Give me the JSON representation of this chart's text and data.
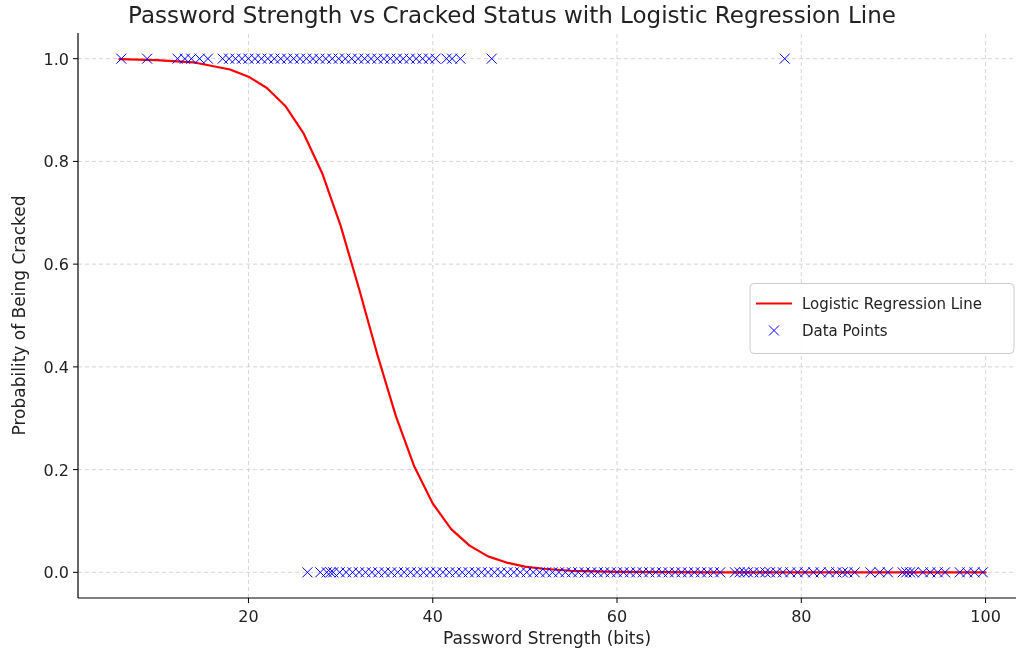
{
  "chart_data": {
    "type": "scatter",
    "title": "Password Strength vs Cracked Status with Logistic Regression Line",
    "xlabel": "Password Strength (bits)",
    "ylabel": "Probability of Being Cracked",
    "xlim": [
      1.5,
      103.3
    ],
    "ylim": [
      -0.05,
      1.05
    ],
    "xticks": [
      20,
      40,
      60,
      80,
      100
    ],
    "yticks": [
      {
        "value": 0,
        "label": "0.0"
      },
      {
        "value": 0.2,
        "label": "0.2"
      },
      {
        "value": 0.4,
        "label": "0.4"
      },
      {
        "value": 0.6,
        "label": "0.6"
      },
      {
        "value": 0.8,
        "label": "0.8"
      },
      {
        "value": 1,
        "label": "1.0"
      }
    ],
    "grid": true,
    "legend": "right",
    "series": [
      {
        "name": "Logistic Regression Line",
        "type": "line",
        "color": "#ff0000",
        "line_style": "solid",
        "marker": "none",
        "x": [
          6,
          10,
          14,
          18,
          20,
          22,
          24,
          26,
          28,
          30,
          32,
          34,
          36,
          38,
          40,
          42,
          44,
          46,
          48,
          50,
          52,
          55,
          60,
          70,
          80,
          90,
          100
        ],
        "values": [
          0.999,
          0.997,
          0.993,
          0.979,
          0.965,
          0.943,
          0.908,
          0.854,
          0.777,
          0.675,
          0.552,
          0.423,
          0.304,
          0.206,
          0.134,
          0.084,
          0.052,
          0.031,
          0.019,
          0.011,
          0.007,
          0.003,
          0.001,
          0,
          0,
          0,
          0
        ]
      },
      {
        "name": "Data Points",
        "color": "#0000ff",
        "marker": "cross",
        "x": [
          6.2,
          9.0,
          12.3,
          13.1,
          13.8,
          14.7,
          15.6,
          17.2,
          17.9,
          18.6,
          19.3,
          20.0,
          20.7,
          21.4,
          22.1,
          22.8,
          23.5,
          24.2,
          24.9,
          25.6,
          26.3,
          27.0,
          27.7,
          28.4,
          29.1,
          29.8,
          30.5,
          31.2,
          31.9,
          32.6,
          33.3,
          34.0,
          34.7,
          35.4,
          36.1,
          36.8,
          37.5,
          38.2,
          38.9,
          39.6,
          40.3,
          41.5,
          42.1,
          43.0,
          46.4,
          78.2,
          26.4,
          27.8,
          28.5,
          28.9,
          29.2,
          29.9,
          30.6,
          31.3,
          32.0,
          32.7,
          33.4,
          34.1,
          34.8,
          35.5,
          36.2,
          36.9,
          37.6,
          38.3,
          39.0,
          39.7,
          40.4,
          41.1,
          41.8,
          42.5,
          43.2,
          43.9,
          44.6,
          45.3,
          46.0,
          46.7,
          47.4,
          48.1,
          48.8,
          49.5,
          50.2,
          50.9,
          51.6,
          52.3,
          53.0,
          53.7,
          54.4,
          55.1,
          55.8,
          56.5,
          57.2,
          57.9,
          58.6,
          59.3,
          60.0,
          60.7,
          61.4,
          62.1,
          62.8,
          63.5,
          64.2,
          64.9,
          65.6,
          66.3,
          67.0,
          67.7,
          68.4,
          69.1,
          69.8,
          70.5,
          71.2,
          72.8,
          73.3,
          73.8,
          74.2,
          74.8,
          75.5,
          76.1,
          76.6,
          77.3,
          78.0,
          78.8,
          79.6,
          80.4,
          81.3,
          82.1,
          83.0,
          83.8,
          84.5,
          85.0,
          85.8,
          87.5,
          88.5,
          89.4,
          91.0,
          91.4,
          91.8,
          92.2,
          93.2,
          94.0,
          94.8,
          95.6,
          97.2,
          98.0,
          98.8,
          99.7
        ],
        "values": [
          1,
          1,
          1,
          1,
          1,
          1,
          1,
          1,
          1,
          1,
          1,
          1,
          1,
          1,
          1,
          1,
          1,
          1,
          1,
          1,
          1,
          1,
          1,
          1,
          1,
          1,
          1,
          1,
          1,
          1,
          1,
          1,
          1,
          1,
          1,
          1,
          1,
          1,
          1,
          1,
          1,
          1,
          1,
          1,
          1,
          1,
          0,
          0,
          0,
          0,
          0,
          0,
          0,
          0,
          0,
          0,
          0,
          0,
          0,
          0,
          0,
          0,
          0,
          0,
          0,
          0,
          0,
          0,
          0,
          0,
          0,
          0,
          0,
          0,
          0,
          0,
          0,
          0,
          0,
          0,
          0,
          0,
          0,
          0,
          0,
          0,
          0,
          0,
          0,
          0,
          0,
          0,
          0,
          0,
          0,
          0,
          0,
          0,
          0,
          0,
          0,
          0,
          0,
          0,
          0,
          0,
          0,
          0,
          0,
          0,
          0,
          0,
          0,
          0,
          0,
          0,
          0,
          0,
          0,
          0,
          0,
          0,
          0,
          0,
          0,
          0,
          0,
          0,
          0,
          0,
          0,
          0,
          0,
          0,
          0,
          0,
          0,
          0,
          0,
          0,
          0,
          0,
          0,
          0,
          0,
          0
        ]
      }
    ]
  }
}
